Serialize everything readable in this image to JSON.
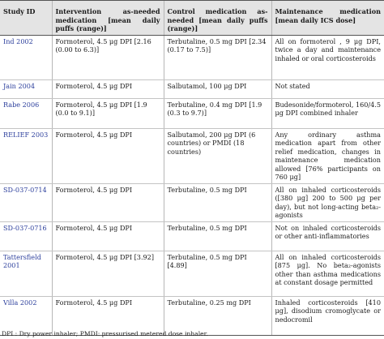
{
  "table": {
    "headers": [
      "Study ID",
      "Intervention as-needed medication [mean daily puffs (range)]",
      "Control medication as-needed [mean daily puffs (range)]",
      "Maintenance medication [mean daily ICS dose]"
    ],
    "rows": [
      {
        "study": "Ind 2002",
        "intervention": "Formoterol, 4.5 μg DPI [2.16 (0.00 to 6.3)]",
        "control": "Terbutaline, 0.5 mg DPI [2.34 (0.17 to 7.5)]",
        "maintenance": "All on formoterol , 9 μg DPI, twice a day and maintenance inhaled or oral corticosteroids"
      },
      {
        "study": "Jain 2004",
        "intervention": "Formoterol, 4.5 μg DPI",
        "control": "Salbutamol, 100 μg DPI",
        "maintenance": "Not stated"
      },
      {
        "study": "Rabe 2006",
        "intervention": "Formoterol, 4.5 μg DPI [1.9 (0.0 to 9.1)]",
        "control": "Terbutaline, 0.4 mg DPI [1.9 (0.3 to 9.7)]",
        "maintenance": "Budesonide/formoterol, 160/4.5 μg DPI combined inhaler"
      },
      {
        "study": "RELIEF 2003",
        "intervention": "Formoterol, 4.5 μg DPI",
        "control": "Salbutamol, 200 μg DPI (6 countries) or PMDI (18 countries)",
        "maintenance": "Any ordinary asthma medication apart from other relief medication, changes in maintenance medication allowed [76% participants on 760 μg]"
      },
      {
        "study": "SD-037-0714",
        "intervention": "Formoterol, 4.5 μg DPI",
        "control": "Terbutaline, 0.5 mg DPI",
        "maintenance": "All on inhaled corticosteroids ([380 μg] 200 to 500 μg per day), but not long-acting beta₂-agonists"
      },
      {
        "study": "SD-037-0716",
        "intervention": "Formoterol, 4.5 μg DPI",
        "control": "Terbutaline, 0.5 mg DPI",
        "maintenance": "Not on inhaled corticosteroids or other anti-inflammatories"
      },
      {
        "study": "Tattersfield 2001",
        "intervention": "Formoterol, 4.5 μg DPI [3.92]",
        "control": "Terbutaline, 0.5 mg DPI [4.89]",
        "maintenance": "All on inhaled corticosteroids [875 μg]. No beta₂-agonists other than asthma medications at constant dosage permitted"
      },
      {
        "study": "Villa 2002",
        "intervention": "Formoterol, 4.5 μg DPI",
        "control": "Terbutaline, 0.25 mg DPI",
        "maintenance": "Inhaled corticosteroids [410 μg], disodium cromoglycate or nedocromil"
      }
    ]
  },
  "footnote": "DPI : Dry power inhaler; PMDI: pressurised metered dose inhaler."
}
